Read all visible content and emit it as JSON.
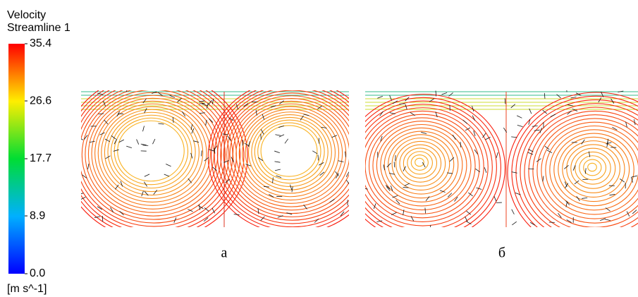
{
  "colorbar": {
    "title": "Velocity",
    "subtitle": "Streamline 1",
    "range": [
      0,
      35.4
    ],
    "ticks": [
      {
        "value": 0,
        "label": "0.0"
      },
      8.9,
      17.7,
      26.6,
      35.4
    ],
    "unit": "[m s^-1]"
  },
  "panels": [
    {
      "label": "а"
    },
    {
      "label": "б"
    }
  ]
}
